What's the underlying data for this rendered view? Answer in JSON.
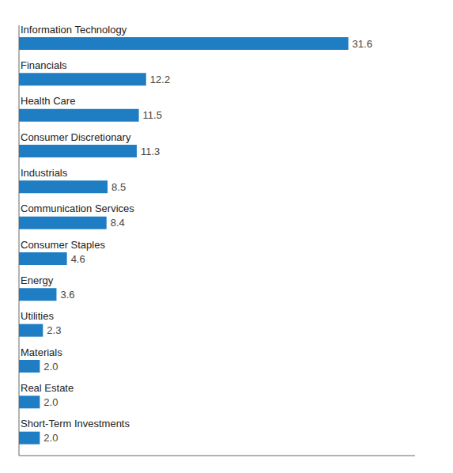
{
  "chart_data": {
    "type": "bar",
    "orientation": "horizontal",
    "categories": [
      "Short-Term Investments",
      "Real Estate",
      "Materials",
      "Utilities",
      "Energy",
      "Consumer Staples",
      "Communication Services",
      "Industrials",
      "Consumer Discretionary",
      "Health Care",
      "Financials",
      "Information Technology"
    ],
    "values": [
      2.0,
      2.0,
      2.0,
      2.3,
      3.6,
      4.6,
      8.4,
      8.5,
      11.3,
      11.5,
      12.2,
      31.6
    ],
    "value_labels": [
      "2.0",
      "2.0",
      "2.0",
      "2.3",
      "3.6",
      "4.6",
      "8.4",
      "8.5",
      "11.3",
      "11.5",
      "12.2",
      "31.6"
    ],
    "color": "#1f7dc4",
    "xlim": [
      0,
      38
    ],
    "data_labels": true,
    "tick_labels": "y",
    "grid": false
  }
}
